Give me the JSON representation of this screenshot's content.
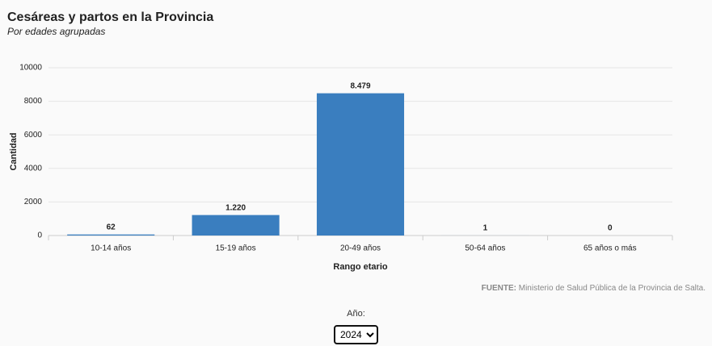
{
  "chart_data": {
    "type": "bar",
    "title": "Cesáreas y partos en la Provincia",
    "subtitle": "Por edades agrupadas",
    "x_label": "Rango etario",
    "y_label": "Cantidad",
    "categories": [
      "10-14 años",
      "15-19 años",
      "20-49 años",
      "50-64 años",
      "65 años o más"
    ],
    "values": [
      62,
      1220,
      8479,
      1,
      0
    ],
    "value_labels": [
      "62",
      "1.220",
      "8.479",
      "1",
      "0"
    ],
    "color": "#3a7ebf",
    "ylim": [
      0,
      10000
    ],
    "yticks": [
      0,
      2000,
      4000,
      6000,
      8000,
      10000
    ],
    "grid": true,
    "source_label": "FUENTE:",
    "source_text": "Ministerio de Salud Pública de la Provincia de Salta."
  },
  "controls": {
    "label": "Año:",
    "options": [
      "2024"
    ]
  }
}
